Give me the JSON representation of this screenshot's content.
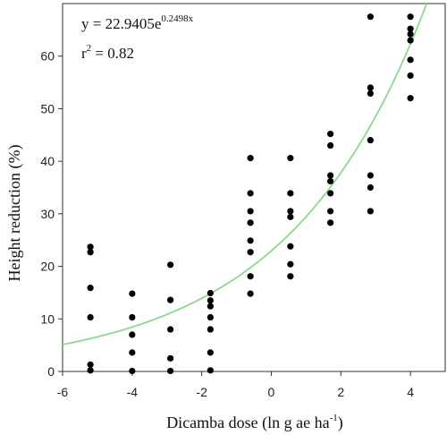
{
  "chart_data": {
    "type": "scatter",
    "xlabel": {
      "main": "Dicamba dose (ln g ae ha",
      "sup": "-1",
      "close": ")"
    },
    "ylabel": "Height reduction (%)",
    "xlim": [
      -6,
      5
    ],
    "ylim": [
      0,
      70
    ],
    "xticks": [
      -6,
      -4,
      -2,
      0,
      2,
      4
    ],
    "yticks": [
      0,
      10,
      20,
      30,
      40,
      50,
      60
    ],
    "grid": false,
    "annotation": {
      "equation_main": "y = 22.9405e",
      "equation_exp": "0.2498x",
      "r2_prefix": "r",
      "r2_sup": "2",
      "r2_value": " = 0.82"
    },
    "fit": {
      "form": "exponential",
      "a": 22.9405,
      "b": 0.2498,
      "color": "#8fd68f"
    },
    "point_color": "#000000",
    "points": [
      {
        "x": -5.2,
        "y": 23.7
      },
      {
        "x": -5.2,
        "y": 22.7
      },
      {
        "x": -5.2,
        "y": 15.9
      },
      {
        "x": -5.2,
        "y": 10.3
      },
      {
        "x": -5.2,
        "y": 1.3
      },
      {
        "x": -5.2,
        "y": 0.2
      },
      {
        "x": -4.0,
        "y": 14.8
      },
      {
        "x": -4.0,
        "y": 10.3
      },
      {
        "x": -4.0,
        "y": 7.0
      },
      {
        "x": -4.0,
        "y": 3.6
      },
      {
        "x": -4.0,
        "y": 0.1
      },
      {
        "x": -2.9,
        "y": 20.3
      },
      {
        "x": -2.9,
        "y": 13.6
      },
      {
        "x": -2.9,
        "y": 8.0
      },
      {
        "x": -2.9,
        "y": 2.5
      },
      {
        "x": -2.9,
        "y": 0.1
      },
      {
        "x": -1.75,
        "y": 14.9
      },
      {
        "x": -1.75,
        "y": 13.5
      },
      {
        "x": -1.75,
        "y": 12.4
      },
      {
        "x": -1.75,
        "y": 10.3
      },
      {
        "x": -1.75,
        "y": 8.0
      },
      {
        "x": -1.75,
        "y": 3.6
      },
      {
        "x": -1.75,
        "y": 0.2
      },
      {
        "x": -0.6,
        "y": 40.6
      },
      {
        "x": -0.6,
        "y": 33.9
      },
      {
        "x": -0.6,
        "y": 30.5
      },
      {
        "x": -0.6,
        "y": 28.3
      },
      {
        "x": -0.6,
        "y": 24.9
      },
      {
        "x": -0.6,
        "y": 22.7
      },
      {
        "x": -0.6,
        "y": 18.1
      },
      {
        "x": -0.6,
        "y": 14.8
      },
      {
        "x": 0.55,
        "y": 40.6
      },
      {
        "x": 0.55,
        "y": 33.9
      },
      {
        "x": 0.55,
        "y": 30.5
      },
      {
        "x": 0.55,
        "y": 29.4
      },
      {
        "x": 0.55,
        "y": 23.8
      },
      {
        "x": 0.55,
        "y": 20.4
      },
      {
        "x": 0.55,
        "y": 18.1
      },
      {
        "x": 1.7,
        "y": 45.2
      },
      {
        "x": 1.7,
        "y": 43.0
      },
      {
        "x": 1.7,
        "y": 37.3
      },
      {
        "x": 1.7,
        "y": 36.2
      },
      {
        "x": 1.7,
        "y": 33.9
      },
      {
        "x": 1.7,
        "y": 30.5
      },
      {
        "x": 1.7,
        "y": 28.3
      },
      {
        "x": 2.85,
        "y": 67.5
      },
      {
        "x": 2.85,
        "y": 54.0
      },
      {
        "x": 2.85,
        "y": 52.9
      },
      {
        "x": 2.85,
        "y": 44.0
      },
      {
        "x": 2.85,
        "y": 37.3
      },
      {
        "x": 2.85,
        "y": 35.0
      },
      {
        "x": 2.85,
        "y": 30.5
      },
      {
        "x": 4.0,
        "y": 67.5
      },
      {
        "x": 4.0,
        "y": 65.2
      },
      {
        "x": 4.0,
        "y": 64.2
      },
      {
        "x": 4.0,
        "y": 63.0
      },
      {
        "x": 4.0,
        "y": 59.3
      },
      {
        "x": 4.0,
        "y": 56.3
      },
      {
        "x": 4.0,
        "y": 52.0
      }
    ]
  }
}
